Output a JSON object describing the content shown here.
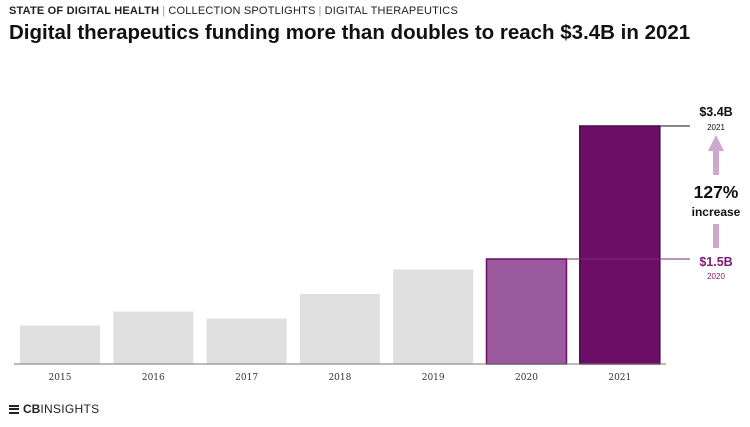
{
  "header": {
    "section": "STATE OF DIGITAL HEALTH",
    "collection": "COLLECTION SPOTLIGHTS",
    "topic": "DIGITAL THERAPEUTICS"
  },
  "title": "Digital therapeutics funding more than doubles to reach $3.4B in 2021",
  "brand": {
    "cb": "CB",
    "rest": "INSIGHTS"
  },
  "colors": {
    "gray": "#e0e0e0",
    "mid_purple": "#9c5a9e",
    "dark_purple": "#6c0d66",
    "arrow_purple": "#cfa7cf"
  },
  "chart_data": {
    "type": "bar",
    "categories": [
      "2015",
      "2016",
      "2017",
      "2018",
      "2019",
      "2020",
      "2021"
    ],
    "values": [
      0.55,
      0.75,
      0.65,
      1.0,
      1.35,
      1.5,
      3.4
    ],
    "unit": "$B",
    "ylim": [
      0,
      3.4
    ],
    "grid": false,
    "highlight": [
      "2020",
      "2021"
    ],
    "annotations": {
      "top_value": "$3.4B",
      "top_year": "2021",
      "bottom_value": "$1.5B",
      "bottom_year": "2020",
      "increase_pct": "127%",
      "increase_word": "increase"
    }
  }
}
